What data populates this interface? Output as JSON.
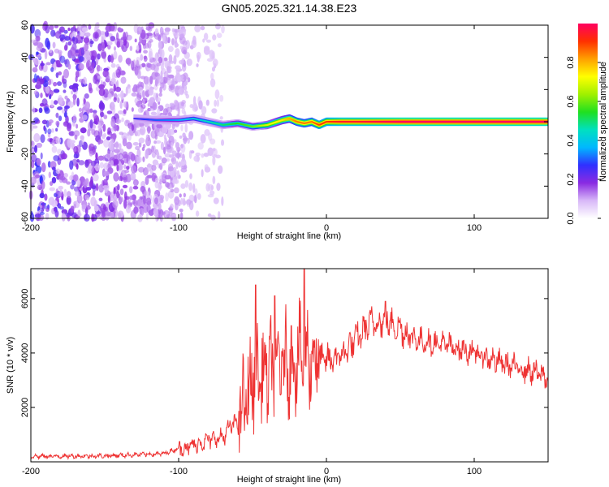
{
  "title": "GN05.2025.321.14.38.E23",
  "chart_data": [
    {
      "type": "heatmap",
      "xlabel": "Height of straight line (km)",
      "ylabel": "Frequency (Hz)",
      "xlim": [
        -200,
        150
      ],
      "ylim": [
        -60,
        60
      ],
      "x_ticks": [
        -200,
        -100,
        0,
        100
      ],
      "y_ticks": [
        60,
        40,
        20,
        0,
        -20,
        -40,
        -60
      ],
      "colorbar": {
        "label": "Normalized spectral amplitude",
        "range": [
          0,
          1
        ],
        "ticks": [
          0.0,
          0.2,
          0.4,
          0.6,
          0.8
        ],
        "colors": [
          "#ffffff",
          "#d8b8f8",
          "#8a2be2",
          "#3030ff",
          "#00b8ff",
          "#00e0c0",
          "#20e020",
          "#a0f000",
          "#ffff00",
          "#ffa000",
          "#ff3000",
          "#ff0060"
        ]
      },
      "ridge": {
        "x": [
          -130,
          -115,
          -100,
          -90,
          -80,
          -70,
          -60,
          -50,
          -40,
          -30,
          -25,
          -20,
          -15,
          -10,
          -5,
          0,
          10,
          20,
          50,
          100,
          150
        ],
        "y": [
          2,
          1,
          1,
          2,
          0,
          -2,
          -1,
          -3,
          -2,
          1,
          2,
          0,
          -1,
          0,
          -2,
          0,
          0,
          0,
          0,
          0,
          0
        ],
        "amplitude": [
          0.25,
          0.3,
          0.35,
          0.4,
          0.45,
          0.5,
          0.55,
          0.6,
          0.7,
          0.75,
          0.8,
          0.85,
          0.85,
          0.85,
          0.9,
          0.9,
          0.95,
          0.95,
          1.0,
          1.0,
          1.0
        ]
      },
      "noise_region_x": [
        -200,
        -95
      ]
    },
    {
      "type": "line",
      "xlabel": "Height of straight line (km)",
      "ylabel": "SNR (10 * v/v)",
      "xlim": [
        -200,
        150
      ],
      "ylim": [
        0,
        7100
      ],
      "x_ticks": [
        -200,
        -100,
        0,
        100
      ],
      "y_ticks": [
        2000,
        4000,
        6000
      ],
      "color": "#ee3333",
      "envelope": {
        "x": [
          -200,
          -150,
          -110,
          -100,
          -90,
          -80,
          -70,
          -65,
          -60,
          -55,
          -50,
          -45,
          -40,
          -35,
          -30,
          -25,
          -20,
          -15,
          -10,
          -5,
          0,
          10,
          20,
          30,
          40,
          50,
          60,
          80,
          100,
          120,
          140,
          150
        ],
        "y": [
          200,
          220,
          300,
          500,
          600,
          800,
          900,
          1300,
          1500,
          2200,
          3000,
          3200,
          3300,
          3400,
          3600,
          3700,
          3800,
          3900,
          3900,
          3800,
          3700,
          3900,
          4500,
          5100,
          5200,
          4900,
          4500,
          4300,
          4000,
          3600,
          3300,
          3100
        ]
      },
      "peaks": [
        {
          "x": -48,
          "y": 6500
        },
        {
          "x": -35,
          "y": 6100
        },
        {
          "x": -15,
          "y": 7100
        },
        {
          "x": 40,
          "y": 5900
        }
      ]
    }
  ]
}
